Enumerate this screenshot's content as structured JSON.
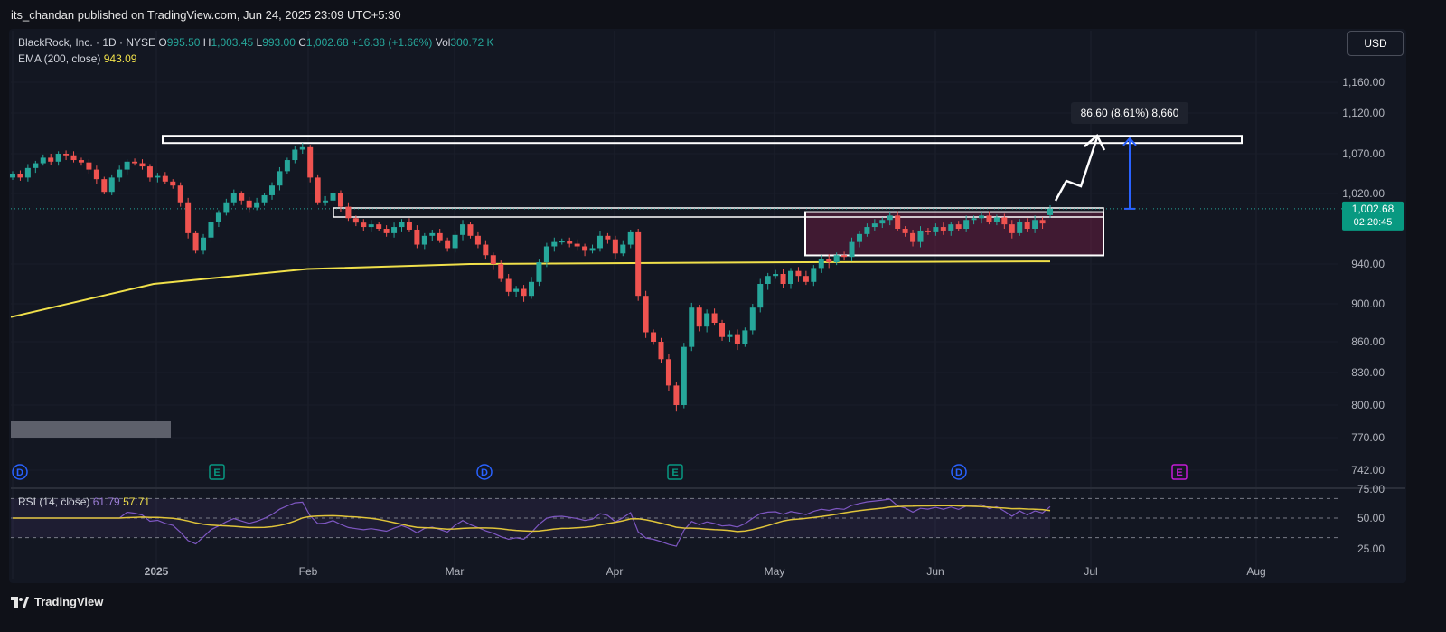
{
  "header": {
    "publisher": "its_chandan published on TradingView.com, Jun 24, 2025 23:09 UTC+5:30"
  },
  "legend": {
    "symbol": "BlackRock, Inc. · 1D · NYSE",
    "open_label": "O",
    "open": "995.50",
    "high_label": "H",
    "high": "1,003.45",
    "low_label": "L",
    "low": "993.00",
    "close_label": "C",
    "close": "1,002.68",
    "change": "+16.38 (+1.66%)",
    "vol_label": "Vol",
    "vol": "300.72 K",
    "ema_label": "EMA (200, close)",
    "ema_value": "943.09"
  },
  "currency": "USD",
  "price_label": {
    "price": "1,002.68",
    "countdown": "02:20:45"
  },
  "measure_label": "86.60 (8.61%) 8,660",
  "rsi_legend": {
    "label": "RSI (14, close)",
    "rsi": "61.79",
    "ma": "57.71"
  },
  "brand": "TradingView",
  "event_markers": [
    {
      "letter": "D",
      "color": "#2962ff",
      "date": "Dec"
    },
    {
      "letter": "E",
      "color": "#089981",
      "date": "Jan"
    },
    {
      "letter": "D",
      "color": "#2962ff",
      "date": "Mar"
    },
    {
      "letter": "E",
      "color": "#089981",
      "date": "Apr"
    },
    {
      "letter": "D",
      "color": "#2962ff",
      "date": "Jun"
    },
    {
      "letter": "E",
      "color": "#c51bd6",
      "date": "Jul"
    }
  ],
  "colors": {
    "up": "#26a69a",
    "down": "#ef5350",
    "ema": "#f0e04a",
    "rsi": "#7e57c2",
    "rsi_ma": "#e0c43a",
    "measure": "#2962ff",
    "background": "#131722"
  },
  "chart_data": {
    "type": "candlestick",
    "title": "BlackRock, Inc. · 1D · NYSE",
    "x_labels": [
      "2025",
      "Feb",
      "Mar",
      "Apr",
      "May",
      "Jun",
      "Jul",
      "Aug"
    ],
    "y_ticks": [
      "1,160.00",
      "1,120.00",
      "1,070.00",
      "1,020.00",
      "940.00",
      "900.00",
      "860.00",
      "830.00",
      "800.00",
      "770.00",
      "742.00"
    ],
    "ylim": [
      742,
      1175
    ],
    "closes": [
      1045,
      1040,
      1052,
      1058,
      1065,
      1060,
      1070,
      1068,
      1062,
      1059,
      1050,
      1038,
      1022,
      1040,
      1050,
      1060,
      1058,
      1054,
      1040,
      1042,
      1035,
      1030,
      1010,
      975,
      955,
      970,
      988,
      998,
      1010,
      1020,
      1012,
      1004,
      1010,
      1018,
      1030,
      1048,
      1062,
      1075,
      1078,
      1040,
      1010,
      1012,
      1020,
      1005,
      992,
      987,
      982,
      985,
      980,
      975,
      982,
      988,
      979,
      962,
      972,
      975,
      967,
      958,
      973,
      985,
      972,
      962,
      950,
      940,
      925,
      912,
      915,
      908,
      922,
      942,
      960,
      965,
      966,
      963,
      960,
      955,
      958,
      972,
      968,
      952,
      962,
      976,
      908,
      870,
      860,
      843,
      818,
      800,
      855,
      896,
      876,
      890,
      880,
      865,
      868,
      858,
      872,
      896,
      920,
      928,
      930,
      920,
      933,
      928,
      922,
      936,
      946,
      942,
      950,
      948,
      965,
      974,
      982,
      986,
      990,
      995,
      980,
      975,
      965,
      978,
      976,
      982,
      978,
      985,
      980,
      990,
      992,
      995,
      988,
      993,
      985,
      975,
      988,
      980,
      990,
      986,
      1002.68
    ],
    "ema200": [
      886,
      920,
      935,
      940,
      942,
      943
    ],
    "rsi": {
      "ticks": [
        "75.00",
        "50.00",
        "25.00"
      ],
      "last": 61.79,
      "ma_last": 57.71
    },
    "annotations": [
      {
        "type": "resistance-zone",
        "price_from": 1088,
        "price_to": 1092
      },
      {
        "type": "consolidation-box",
        "price_from": 958,
        "price_to": 1002
      },
      {
        "type": "measure",
        "value": "86.60 (8.61%) 8,660",
        "from": 1002.68,
        "to": 1089
      }
    ]
  }
}
